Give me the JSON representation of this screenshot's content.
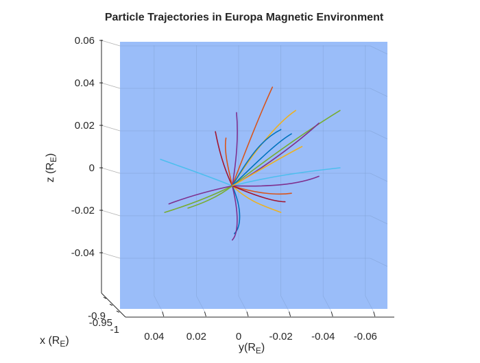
{
  "chart_data": {
    "type": "line",
    "projection": "3d",
    "title": "Particle Trajectories in Europa Magnetic Environment",
    "xlabel": "x (R_E)",
    "ylabel": "y(R_E)",
    "zlabel": "z (R_E)",
    "xticks": [
      "-0.9",
      "-0.95",
      "-1"
    ],
    "yticks": [
      "0.04",
      "0.02",
      "0",
      "-0.02",
      "-0.04",
      "-0.06"
    ],
    "zticks": [
      "0.06",
      "0.04",
      "0.02",
      "0",
      "-0.02",
      "-0.04"
    ],
    "ylim": [
      0.07,
      -0.07
    ],
    "zlim": [
      -0.065,
      0.06
    ],
    "grid": true,
    "plane_color": "#8fb6f8",
    "series_colors": [
      "#0072bd",
      "#d95319",
      "#edb120",
      "#7e2f8e",
      "#77ac30",
      "#4dbeee",
      "#a2142f"
    ],
    "origin": {
      "y": 0.003,
      "z": -0.0085
    },
    "trajectories": [
      {
        "color": "#d95319",
        "points": [
          [
            0.003,
            -0.0085
          ],
          [
            -0.004,
            0.01
          ],
          [
            -0.01,
            0.025
          ],
          [
            -0.016,
            0.038
          ]
        ]
      },
      {
        "color": "#edb120",
        "points": [
          [
            0.003,
            -0.0085
          ],
          [
            -0.006,
            0.006
          ],
          [
            -0.018,
            0.021
          ],
          [
            -0.027,
            0.027
          ]
        ]
      },
      {
        "color": "#77ac30",
        "points": [
          [
            0.003,
            -0.0085
          ],
          [
            -0.012,
            0.003
          ],
          [
            -0.03,
            0.016
          ],
          [
            -0.048,
            0.027
          ]
        ]
      },
      {
        "color": "#7e2f8e",
        "points": [
          [
            0.003,
            -0.0085
          ],
          [
            -0.012,
            0.0
          ],
          [
            -0.028,
            0.012
          ],
          [
            -0.038,
            0.021
          ]
        ]
      },
      {
        "color": "#0072bd",
        "points": [
          [
            0.003,
            -0.0085
          ],
          [
            -0.008,
            0.002
          ],
          [
            -0.018,
            0.012
          ],
          [
            -0.025,
            0.016
          ]
        ]
      },
      {
        "color": "#4dbeee",
        "points": [
          [
            0.003,
            -0.0085
          ],
          [
            -0.015,
            -0.004
          ],
          [
            -0.03,
            -0.002
          ],
          [
            -0.048,
            0.0
          ]
        ]
      },
      {
        "color": "#7e2f8e",
        "points": [
          [
            0.003,
            -0.0085
          ],
          [
            -0.015,
            -0.009
          ],
          [
            -0.028,
            -0.008
          ],
          [
            -0.038,
            -0.004
          ]
        ]
      },
      {
        "color": "#d95319",
        "points": [
          [
            0.003,
            -0.0085
          ],
          [
            -0.008,
            -0.012
          ],
          [
            -0.018,
            -0.013
          ],
          [
            -0.025,
            -0.012
          ]
        ]
      },
      {
        "color": "#edb120",
        "points": [
          [
            0.003,
            -0.0085
          ],
          [
            -0.005,
            -0.016
          ],
          [
            -0.012,
            -0.018
          ],
          [
            -0.02,
            -0.021
          ]
        ]
      },
      {
        "color": "#4dbeee",
        "points": [
          [
            0.003,
            -0.0085
          ],
          [
            0.014,
            -0.004
          ],
          [
            0.026,
            0.0
          ],
          [
            0.037,
            0.004
          ]
        ]
      },
      {
        "color": "#77ac30",
        "points": [
          [
            0.003,
            -0.0085
          ],
          [
            0.012,
            -0.013
          ],
          [
            0.022,
            -0.017
          ],
          [
            0.035,
            -0.021
          ]
        ]
      },
      {
        "color": "#7e2f8e",
        "points": [
          [
            0.003,
            -0.0085
          ],
          [
            0.015,
            -0.011
          ],
          [
            0.025,
            -0.014
          ],
          [
            0.033,
            -0.017
          ]
        ]
      },
      {
        "color": "#a2142f",
        "points": [
          [
            0.003,
            -0.0085
          ],
          [
            0.008,
            0.002
          ],
          [
            0.01,
            0.012
          ],
          [
            0.011,
            0.017
          ]
        ]
      },
      {
        "color": "#7e2f8e",
        "points": [
          [
            0.003,
            -0.0085
          ],
          [
            0.001,
            0.004
          ],
          [
            0.0,
            0.015
          ],
          [
            0.001,
            0.026
          ]
        ]
      },
      {
        "color": "#d95319",
        "points": [
          [
            0.003,
            -0.0085
          ],
          [
            0.005,
            0.0
          ],
          [
            0.007,
            0.008
          ],
          [
            0.006,
            0.014
          ]
        ]
      },
      {
        "color": "#0072bd",
        "points": [
          [
            0.003,
            -0.0085
          ],
          [
            -0.002,
            -0.02
          ],
          [
            -0.001,
            -0.028
          ],
          [
            0.002,
            -0.031
          ]
        ]
      },
      {
        "color": "#7e2f8e",
        "points": [
          [
            0.003,
            -0.0085
          ],
          [
            -0.001,
            -0.025
          ],
          [
            0.001,
            -0.032
          ],
          [
            0.003,
            -0.034
          ]
        ]
      },
      {
        "color": "#a2142f",
        "points": [
          [
            0.003,
            -0.0085
          ],
          [
            -0.01,
            -0.014
          ],
          [
            -0.018,
            -0.016
          ],
          [
            -0.022,
            -0.016
          ]
        ]
      },
      {
        "color": "#0072bd",
        "points": [
          [
            0.003,
            -0.0085
          ],
          [
            -0.006,
            0.007
          ],
          [
            -0.012,
            0.014
          ],
          [
            -0.02,
            0.018
          ]
        ]
      },
      {
        "color": "#edb120",
        "points": [
          [
            0.003,
            -0.0085
          ],
          [
            -0.012,
            0.0
          ],
          [
            -0.022,
            0.006
          ],
          [
            -0.03,
            0.01
          ]
        ]
      },
      {
        "color": "#77ac30",
        "points": [
          [
            0.003,
            -0.0085
          ],
          [
            0.01,
            -0.014
          ],
          [
            0.018,
            -0.017
          ],
          [
            0.024,
            -0.019
          ]
        ]
      }
    ]
  }
}
